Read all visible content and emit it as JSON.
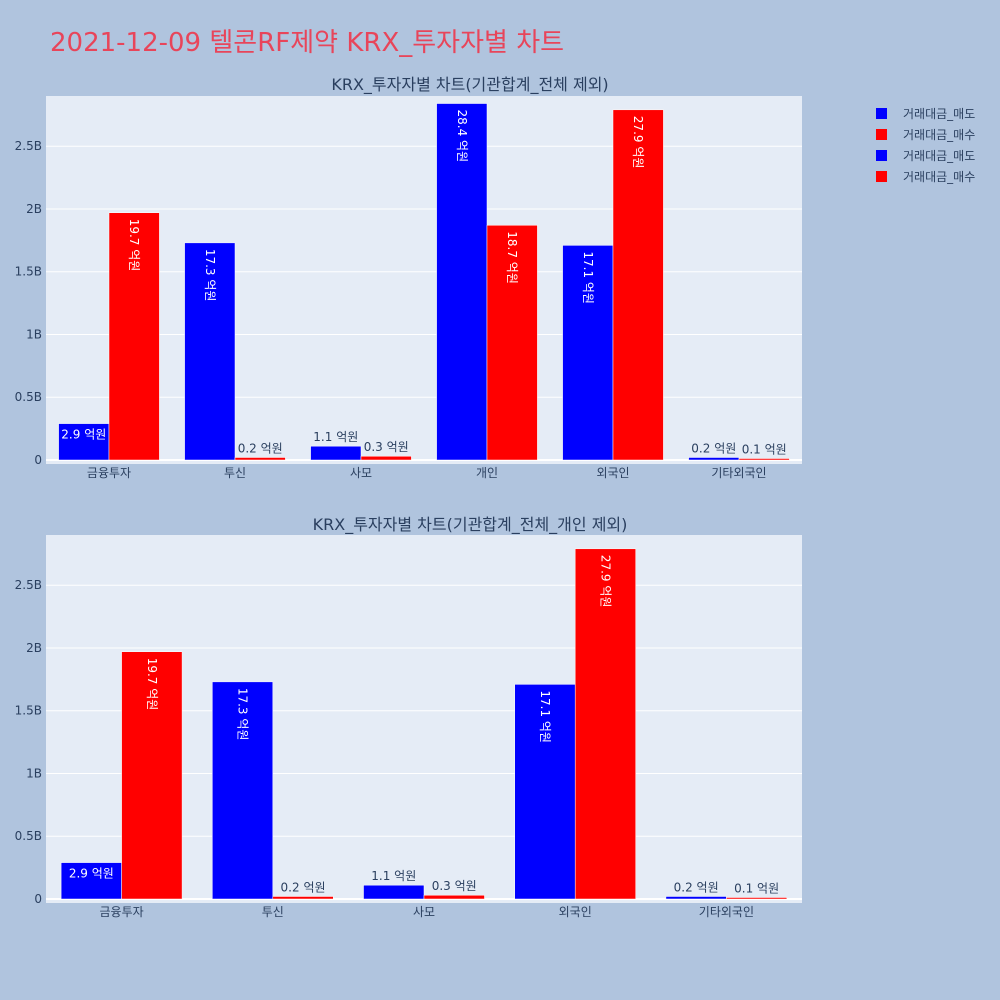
{
  "page": {
    "title": "2021-12-09 텔콘RF제약 KRX_투자자별 차트",
    "background": "#b0c4de",
    "plot_background": "#e5ecf6",
    "title_color": "#e8455a"
  },
  "legend": {
    "placement": "top-right",
    "items": [
      {
        "name": "거래대금_매도",
        "color": "#0000ff"
      },
      {
        "name": "거래대금_매수",
        "color": "#ff0000"
      },
      {
        "name": "거래대금_매도",
        "color": "#0000ff"
      },
      {
        "name": "거래대금_매수",
        "color": "#ff0000"
      }
    ]
  },
  "chart_data": [
    {
      "type": "bar",
      "title": "KRX_투자자별 차트(기관합계_전체 제외)",
      "categories": [
        "금융투자",
        "투신",
        "사모",
        "개인",
        "외국인",
        "기타외국인"
      ],
      "ylim": [
        0,
        3000000000
      ],
      "yticks": [
        {
          "value": 0,
          "label": "0"
        },
        {
          "value": 500000000,
          "label": "0.5B"
        },
        {
          "value": 1000000000,
          "label": "1B"
        },
        {
          "value": 1500000000,
          "label": "1.5B"
        },
        {
          "value": 2000000000,
          "label": "2B"
        },
        {
          "value": 2500000000,
          "label": "2.5B"
        }
      ],
      "grid": true,
      "series": [
        {
          "name": "거래대금_매도",
          "color": "#0000ff",
          "values": [
            290000000,
            1730000000,
            110000000,
            2840000000,
            1710000000,
            20000000
          ],
          "labels": [
            "2.9 억원",
            "17.3 억원",
            "1.1 억원",
            "28.4 억원",
            "17.1 억원",
            "0.2 억원"
          ]
        },
        {
          "name": "거래대금_매수",
          "color": "#ff0000",
          "values": [
            1970000000,
            20000000,
            30000000,
            1870000000,
            2790000000,
            10000000
          ],
          "labels": [
            "19.7 억원",
            "0.2 억원",
            "0.3 억원",
            "18.7 억원",
            "27.9 억원",
            "0.1 억원"
          ]
        }
      ]
    },
    {
      "type": "bar",
      "title": "KRX_투자자별 차트(기관합계_전체_개인 제외)",
      "categories": [
        "금융투자",
        "투신",
        "사모",
        "외국인",
        "기타외국인"
      ],
      "ylim": [
        0,
        3000000000
      ],
      "yticks": [
        {
          "value": 0,
          "label": "0"
        },
        {
          "value": 500000000,
          "label": "0.5B"
        },
        {
          "value": 1000000000,
          "label": "1B"
        },
        {
          "value": 1500000000,
          "label": "1.5B"
        },
        {
          "value": 2000000000,
          "label": "2B"
        },
        {
          "value": 2500000000,
          "label": "2.5B"
        }
      ],
      "grid": true,
      "series": [
        {
          "name": "거래대금_매도",
          "color": "#0000ff",
          "values": [
            290000000,
            1730000000,
            110000000,
            1710000000,
            20000000
          ],
          "labels": [
            "2.9 억원",
            "17.3 억원",
            "1.1 억원",
            "17.1 억원",
            "0.2 억원"
          ]
        },
        {
          "name": "거래대금_매수",
          "color": "#ff0000",
          "values": [
            1970000000,
            20000000,
            30000000,
            2790000000,
            10000000
          ],
          "labels": [
            "19.7 억원",
            "0.2 억원",
            "0.3 억원",
            "27.9 억원",
            "0.1 억원"
          ]
        }
      ]
    }
  ]
}
